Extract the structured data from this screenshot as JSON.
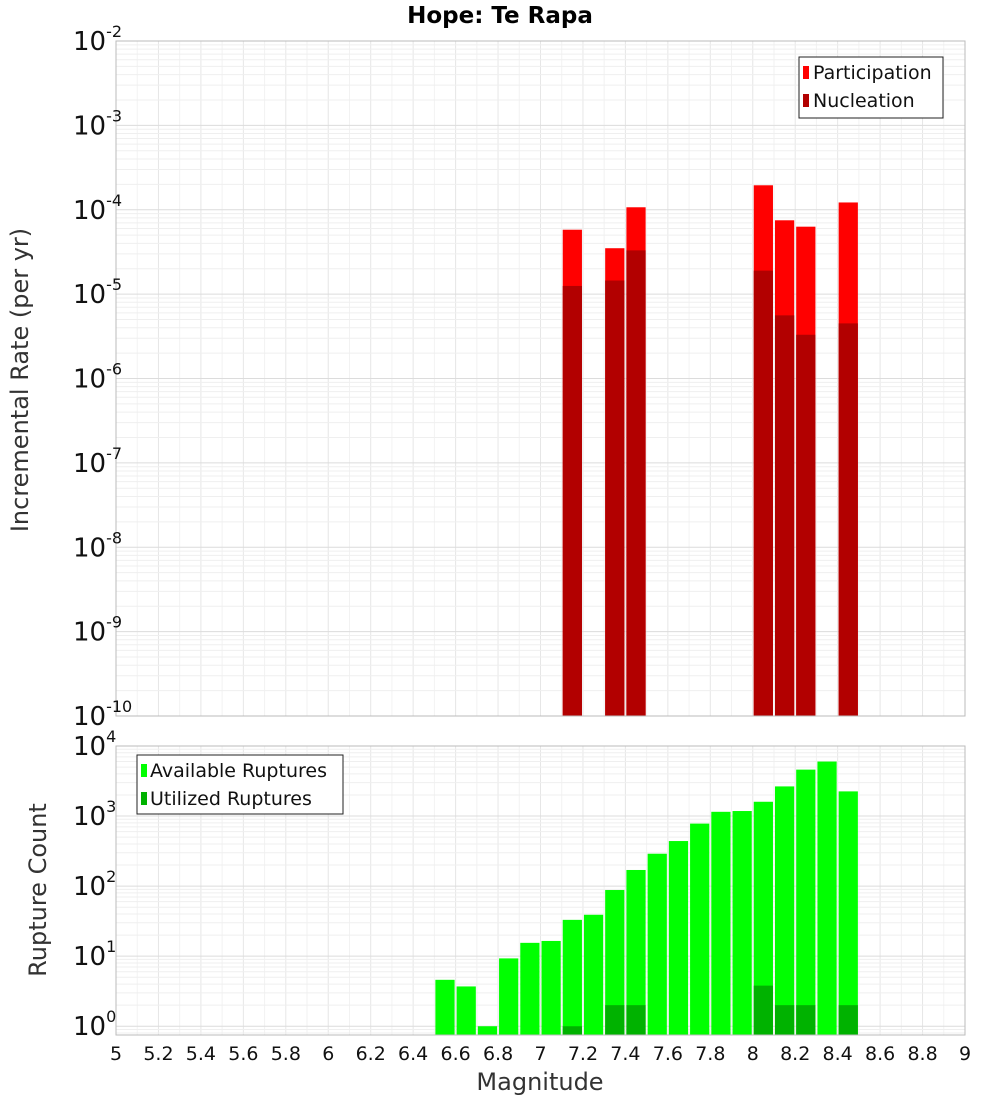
{
  "chart_data": [
    {
      "type": "bar",
      "title": "Hope: Te Rapa",
      "xlabel": "",
      "ylabel": "Incremental Rate (per yr)",
      "xlim": [
        5,
        9
      ],
      "ylim": [
        1e-10,
        0.01
      ],
      "yscale": "log",
      "y_tick_exponents": [
        -10,
        -9,
        -8,
        -7,
        -6,
        -5,
        -4,
        -3,
        -2
      ],
      "grid": true,
      "legend_position": "top-right",
      "series": [
        {
          "name": "Participation",
          "color": "#ff0000",
          "x": [
            7.15,
            7.35,
            7.45,
            8.05,
            8.15,
            8.25,
            8.45
          ],
          "values": [
            5.8e-05,
            3.5e-05,
            0.000107,
            0.000195,
            7.5e-05,
            6.3e-05,
            0.000122
          ]
        },
        {
          "name": "Nucleation",
          "color": "#b20000",
          "x": [
            7.15,
            7.35,
            7.45,
            8.05,
            8.15,
            8.25,
            8.45
          ],
          "values": [
            1.25e-05,
            1.45e-05,
            3.3e-05,
            1.9e-05,
            5.6e-06,
            3.3e-06,
            4.5e-06
          ]
        }
      ]
    },
    {
      "type": "bar",
      "title": "",
      "xlabel": "Magnitude",
      "ylabel": "Rupture Count",
      "xlim": [
        5,
        9
      ],
      "ylim": [
        0.75,
        10000.0
      ],
      "yscale": "log",
      "y_tick_exponents": [
        0,
        1,
        2,
        3,
        4
      ],
      "x_ticks": [
        "5",
        "5.2",
        "5.4",
        "5.6",
        "5.8",
        "6",
        "6.2",
        "6.4",
        "6.6",
        "6.8",
        "7",
        "7.2",
        "7.4",
        "7.6",
        "7.8",
        "8",
        "8.2",
        "8.4",
        "8.6",
        "8.8",
        "9"
      ],
      "grid": true,
      "legend_position": "top-left",
      "series": [
        {
          "name": "Available Ruptures",
          "color": "#00ff00",
          "x": [
            6.55,
            6.65,
            6.75,
            6.85,
            6.95,
            7.05,
            7.15,
            7.25,
            7.35,
            7.45,
            7.55,
            7.65,
            7.75,
            7.85,
            7.95,
            8.05,
            8.15,
            8.25,
            8.35,
            8.45
          ],
          "values": [
            4.6,
            3.7,
            1,
            9.3,
            15.5,
            16.5,
            33,
            39,
            88,
            170,
            290,
            440,
            780,
            1150,
            1180,
            1600,
            2650,
            4600,
            6000,
            2250
          ]
        },
        {
          "name": "Utilized Ruptures",
          "color": "#00b200",
          "x": [
            7.15,
            7.35,
            7.45,
            8.05,
            8.15,
            8.25,
            8.45
          ],
          "values": [
            1,
            2,
            2,
            3.8,
            2,
            2,
            2
          ]
        }
      ]
    }
  ]
}
